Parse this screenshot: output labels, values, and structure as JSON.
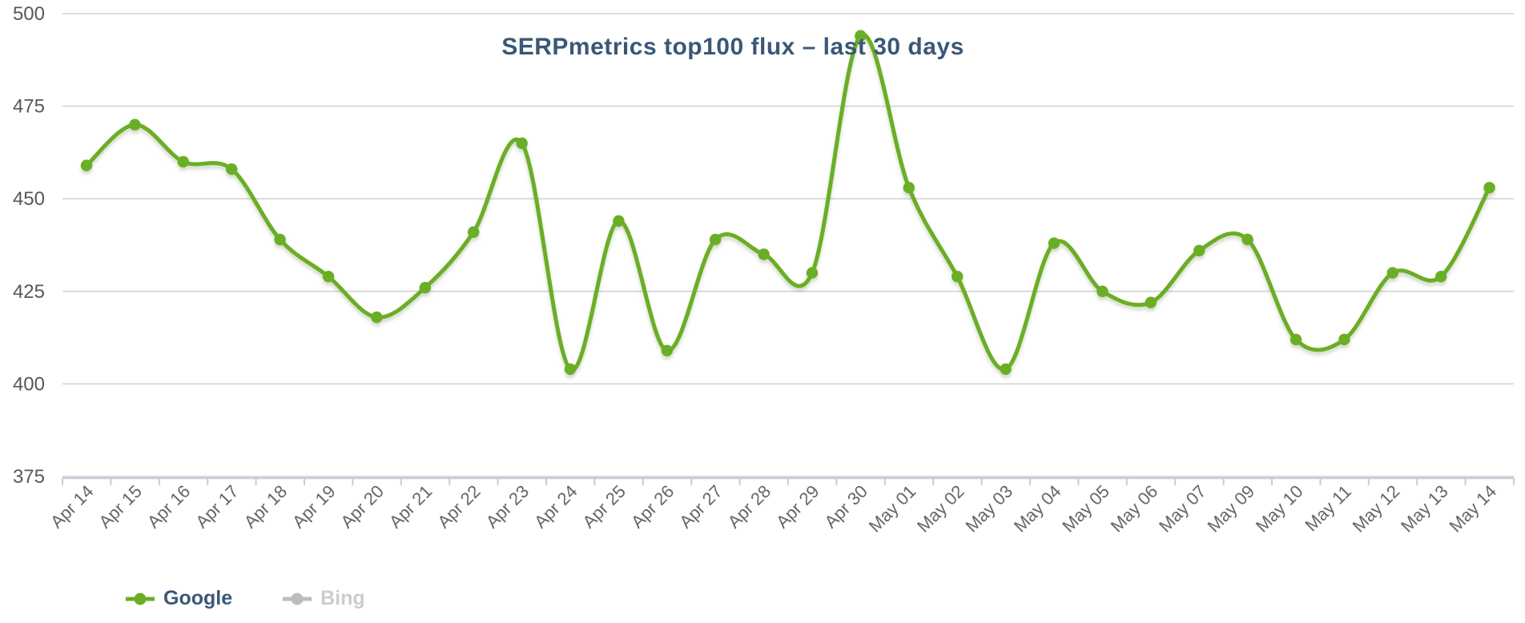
{
  "title": "SERPmetrics top100 flux – last 30 days",
  "legend": [
    {
      "label": "Google",
      "marker_color": "#6aae25",
      "text_color": "#3a5875",
      "enabled": true
    },
    {
      "label": "Bing",
      "marker_color": "#bcbcbc",
      "text_color": "#cccccc",
      "enabled": false
    }
  ],
  "chart_data": {
    "type": "line",
    "title": "SERPmetrics top100 flux – last 30 days",
    "line_shape": "smooth",
    "grid": true,
    "legend_position": "bottom-left",
    "xlabel": "",
    "ylabel": "",
    "ylim": [
      375,
      500
    ],
    "yticks": [
      375,
      400,
      425,
      450,
      475,
      500
    ],
    "categories": [
      "Apr 14",
      "Apr 15",
      "Apr 16",
      "Apr 17",
      "Apr 18",
      "Apr 19",
      "Apr 20",
      "Apr 21",
      "Apr 22",
      "Apr 23",
      "Apr 24",
      "Apr 25",
      "Apr 26",
      "Apr 27",
      "Apr 28",
      "Apr 29",
      "Apr 30",
      "May 01",
      "May 02",
      "May 03",
      "May 04",
      "May 05",
      "May 06",
      "May 07",
      "May 09",
      "May 10",
      "May 11",
      "May 12",
      "May 13",
      "May 14"
    ],
    "series": [
      {
        "name": "Google",
        "color": "#6aae25",
        "visible": true,
        "values": [
          459,
          470,
          460,
          458,
          439,
          429,
          418,
          426,
          441,
          465,
          404,
          444,
          409,
          439,
          435,
          430,
          494,
          453,
          429,
          404,
          438,
          425,
          422,
          436,
          439,
          412,
          412,
          430,
          429,
          453
        ]
      },
      {
        "name": "Bing",
        "color": "#bcbcbc",
        "visible": false,
        "values": []
      }
    ]
  },
  "colors": {
    "title_text": "#3a5875",
    "y_axis_label": "#55585c",
    "x_axis_label": "#63666b",
    "gridline": "#d8d8d8",
    "axis_line": "#c6cbd8",
    "background": "#ffffff",
    "series_green": "#6aae25"
  }
}
